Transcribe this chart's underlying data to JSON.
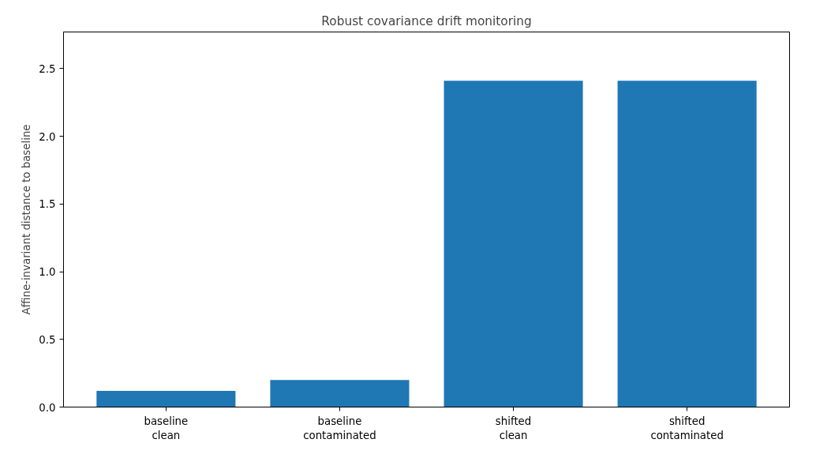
{
  "chart_data": {
    "type": "bar",
    "title": "Robust covariance drift monitoring",
    "ylabel": "Affine-invariant distance to baseline",
    "categories": [
      "baseline\nclean",
      "baseline\ncontaminated",
      "shifted\nclean",
      "shifted\ncontaminated"
    ],
    "values": [
      0.12,
      0.2,
      2.41,
      2.41
    ],
    "color": "#1f77b4",
    "ylim": [
      0,
      2.77
    ],
    "yticks": [
      {
        "value": 0,
        "label": "0.0"
      },
      0.5,
      {
        "value": 1,
        "label": "1.0"
      },
      1.5,
      {
        "value": 2,
        "label": "2.0"
      },
      2.5
    ],
    "grid": false
  }
}
